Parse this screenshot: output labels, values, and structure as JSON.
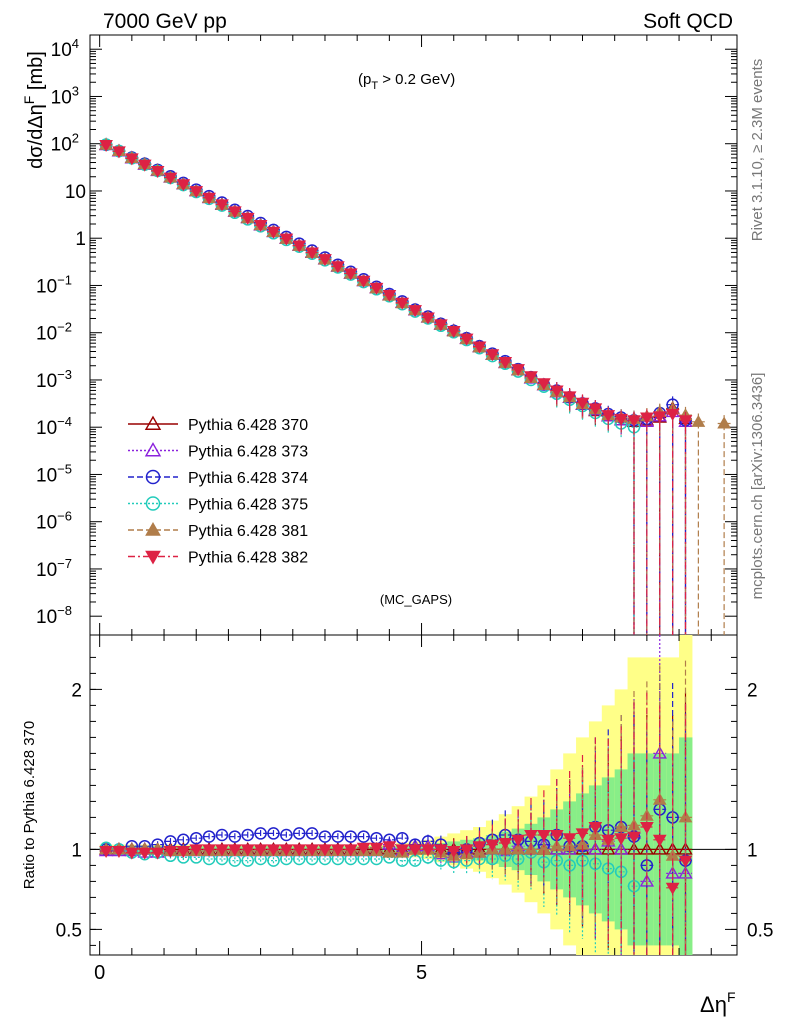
{
  "header": {
    "left": "7000 GeV pp",
    "right": "Soft QCD",
    "cut": "(p_T > 0.2 GeV)",
    "analysis": "(MC_GAPS)"
  },
  "side": {
    "top": "Rivet 3.1.10, ≥ 2.3M events",
    "bottom": "mcplots.cern.ch [arXiv:1306.3436]"
  },
  "chart_data": [
    {
      "type": "scatter",
      "panel": "main",
      "ylabel": "dσ/dΔη^F [mb]",
      "xlabel": "Δη^F",
      "xlim": [
        -0.15,
        9.9
      ],
      "ylim": [
        4e-09,
        20000
      ],
      "yscale": "log",
      "yticks": [
        "10^-8",
        "10^-7",
        "10^-6",
        "10^-5",
        "10^-4",
        "10^-3",
        "10^-2",
        "10^-1",
        "1",
        "10",
        "10^2",
        "10^3",
        "10^4"
      ],
      "legend_position": "lower-left",
      "x": [
        0.1,
        0.3,
        0.5,
        0.7,
        0.9,
        1.1,
        1.3,
        1.5,
        1.7,
        1.9,
        2.1,
        2.3,
        2.5,
        2.7,
        2.9,
        3.1,
        3.3,
        3.5,
        3.7,
        3.9,
        4.1,
        4.3,
        4.5,
        4.7,
        4.9,
        5.1,
        5.3,
        5.5,
        5.7,
        5.9,
        6.1,
        6.3,
        6.5,
        6.7,
        6.9,
        7.1,
        7.3,
        7.5,
        7.7,
        7.9,
        8.1,
        8.3,
        8.5,
        8.7,
        8.9,
        9.1,
        9.3,
        9.5,
        9.7
      ],
      "series": [
        {
          "name": "Pythia 6.428 370",
          "color": "#990000",
          "marker": "open-triangle-up",
          "line": "solid",
          "values": [
            95,
            70,
            50,
            37,
            27,
            19.5,
            14,
            10,
            7.2,
            5.2,
            3.7,
            2.7,
            1.9,
            1.37,
            0.98,
            0.7,
            0.5,
            0.36,
            0.255,
            0.18,
            0.125,
            0.088,
            0.062,
            0.043,
            0.03,
            0.021,
            0.015,
            0.011,
            0.0075,
            0.005,
            0.0034,
            0.0023,
            0.0016,
            0.0011,
            0.00078,
            0.00055,
            0.00042,
            0.0003,
            0.00022,
            0.00017,
            0.00014,
            0.00013,
            0.00014,
            0.00016,
            0.00025,
            0.00015,
            null,
            null,
            null
          ]
        },
        {
          "name": "Pythia 6.428 373",
          "color": "#8b22dd",
          "marker": "open-triangle-up",
          "line": "dotted",
          "values": [
            94,
            69,
            49,
            36,
            26.5,
            19.2,
            13.8,
            9.9,
            7.1,
            5.1,
            3.65,
            2.65,
            1.87,
            1.35,
            0.97,
            0.69,
            0.49,
            0.355,
            0.25,
            0.178,
            0.124,
            0.087,
            0.063,
            0.043,
            0.03,
            0.021,
            0.0148,
            0.0108,
            0.0074,
            0.0049,
            0.0034,
            0.0023,
            0.0016,
            0.00108,
            0.00078,
            0.00055,
            0.00042,
            0.0003,
            0.00023,
            0.00017,
            0.00014,
            0.00015,
            0.00013,
            0.00017,
            0.00021,
            0.00013,
            null,
            null,
            null
          ]
        },
        {
          "name": "Pythia 6.428 374",
          "color": "#2222cc",
          "marker": "open-circle",
          "line": "dashed",
          "values": [
            95,
            70,
            51,
            38,
            28,
            20.5,
            14.8,
            10.7,
            7.8,
            5.7,
            4.0,
            2.95,
            2.1,
            1.5,
            1.07,
            0.77,
            0.55,
            0.39,
            0.275,
            0.195,
            0.135,
            0.094,
            0.066,
            0.046,
            0.031,
            0.022,
            0.0155,
            0.011,
            0.0077,
            0.0052,
            0.0036,
            0.0025,
            0.0017,
            0.00115,
            0.0008,
            0.0006,
            0.00043,
            0.00032,
            0.00025,
            0.00019,
            0.00016,
            0.00014,
            0.00015,
            0.0002,
            0.0003,
            0.00014,
            null,
            null,
            null
          ]
        },
        {
          "name": "Pythia 6.428 375",
          "color": "#22ccbb",
          "marker": "open-circle",
          "line": "dotted",
          "values": [
            96,
            70,
            49,
            36,
            26.5,
            18.8,
            13.3,
            9.5,
            6.8,
            4.9,
            3.45,
            2.5,
            1.78,
            1.27,
            0.92,
            0.66,
            0.47,
            0.34,
            0.24,
            0.17,
            0.118,
            0.083,
            0.059,
            0.04,
            0.028,
            0.02,
            0.014,
            0.0102,
            0.007,
            0.0047,
            0.0032,
            0.0022,
            0.0015,
            0.001,
            0.00072,
            0.00051,
            0.00038,
            0.00028,
            0.0002,
            0.00015,
            0.00012,
            0.0001,
            null,
            null,
            null,
            null,
            null,
            null,
            null
          ]
        },
        {
          "name": "Pythia 6.428 381",
          "color": "#b07d4a",
          "marker": "filled-triangle-up",
          "line": "dashed",
          "values": [
            95,
            70,
            50,
            37,
            27,
            19.3,
            13.9,
            9.9,
            7.1,
            5.1,
            3.65,
            2.65,
            1.88,
            1.35,
            0.97,
            0.69,
            0.49,
            0.355,
            0.25,
            0.178,
            0.124,
            0.087,
            0.061,
            0.042,
            0.03,
            0.021,
            0.0147,
            0.0106,
            0.0073,
            0.0049,
            0.0034,
            0.0023,
            0.0016,
            0.0011,
            0.00078,
            0.00056,
            0.00043,
            0.00031,
            0.00024,
            0.00018,
            0.00016,
            0.00015,
            0.00017,
            0.00021,
            0.00024,
            0.00018,
            0.00013,
            null,
            0.00012
          ]
        },
        {
          "name": "Pythia 6.428 382",
          "color": "#dd2244",
          "marker": "filled-triangle-down",
          "line": "dashdot",
          "values": [
            94,
            69,
            49,
            36,
            26.5,
            19.2,
            13.9,
            9.95,
            7.2,
            5.2,
            3.7,
            2.7,
            1.9,
            1.37,
            0.98,
            0.7,
            0.5,
            0.36,
            0.255,
            0.18,
            0.126,
            0.089,
            0.063,
            0.043,
            0.03,
            0.021,
            0.015,
            0.0109,
            0.0075,
            0.0051,
            0.0035,
            0.0024,
            0.0017,
            0.0012,
            0.00085,
            0.0006,
            0.00045,
            0.00033,
            0.00025,
            0.00018,
            0.00015,
            0.00014,
            0.00016,
            0.00017,
            0.00019,
            0.00014,
            null,
            null,
            null
          ]
        }
      ]
    },
    {
      "type": "scatter",
      "panel": "ratio",
      "ylabel": "Ratio to Pythia 6.428 370",
      "xlabel": "Δη^F",
      "xlim": [
        -0.15,
        9.9
      ],
      "ylim": [
        0.34,
        2.34
      ],
      "xticks": [
        0,
        5
      ],
      "yticks": [
        0.5,
        1,
        2
      ],
      "x": [
        0.1,
        0.3,
        0.5,
        0.7,
        0.9,
        1.1,
        1.3,
        1.5,
        1.7,
        1.9,
        2.1,
        2.3,
        2.5,
        2.7,
        2.9,
        3.1,
        3.3,
        3.5,
        3.7,
        3.9,
        4.1,
        4.3,
        4.5,
        4.7,
        4.9,
        5.1,
        5.3,
        5.5,
        5.7,
        5.9,
        6.1,
        6.3,
        6.5,
        6.7,
        6.9,
        7.1,
        7.3,
        7.5,
        7.7,
        7.9,
        8.1,
        8.3,
        8.5,
        8.7,
        8.9,
        9.1,
        9.3,
        9.5,
        9.7
      ],
      "band_inner": [
        0.02,
        0.02,
        0.02,
        0.02,
        0.02,
        0.02,
        0.02,
        0.02,
        0.02,
        0.02,
        0.02,
        0.02,
        0.02,
        0.02,
        0.02,
        0.02,
        0.02,
        0.02,
        0.02,
        0.02,
        0.02,
        0.02,
        0.02,
        0.02,
        0.025,
        0.03,
        0.04,
        0.05,
        0.06,
        0.07,
        0.09,
        0.11,
        0.13,
        0.16,
        0.2,
        0.25,
        0.3,
        0.35,
        0.4,
        0.45,
        0.5,
        0.6,
        0.6,
        0.6,
        0.6,
        0.7,
        null,
        null,
        null
      ],
      "band_outer": [
        0.03,
        0.03,
        0.03,
        0.03,
        0.03,
        0.03,
        0.03,
        0.03,
        0.03,
        0.03,
        0.03,
        0.03,
        0.03,
        0.03,
        0.03,
        0.03,
        0.03,
        0.03,
        0.03,
        0.03,
        0.03,
        0.03,
        0.03,
        0.04,
        0.05,
        0.06,
        0.08,
        0.1,
        0.12,
        0.14,
        0.18,
        0.22,
        0.27,
        0.33,
        0.4,
        0.5,
        0.6,
        0.7,
        0.8,
        0.9,
        1.0,
        1.2,
        1.2,
        1.2,
        1.2,
        1.4,
        null,
        null,
        null
      ],
      "series": [
        {
          "name": "Pythia 6.428 370",
          "values": [
            1,
            1,
            1,
            1,
            1,
            1,
            1,
            1,
            1,
            1,
            1,
            1,
            1,
            1,
            1,
            1,
            1,
            1,
            1,
            1,
            1,
            1,
            1,
            1,
            1,
            1,
            1,
            1,
            1,
            1,
            1,
            1,
            1,
            1,
            1,
            1,
            1,
            1,
            1,
            1,
            1,
            1,
            1,
            1,
            1,
            1,
            null,
            null,
            null
          ]
        },
        {
          "name": "Pythia 6.428 373",
          "values": [
            0.99,
            0.99,
            0.99,
            0.98,
            0.98,
            0.99,
            0.99,
            0.99,
            0.99,
            0.99,
            0.99,
            0.99,
            0.99,
            0.99,
            0.99,
            0.99,
            0.99,
            0.99,
            0.99,
            0.99,
            0.99,
            0.99,
            1.03,
            0.99,
            1.02,
            1.02,
            0.97,
            0.95,
            0.98,
            0.98,
            1.0,
            0.99,
            1.02,
            1.0,
            1.03,
            1.0,
            1.0,
            1.02,
            1.0,
            1.05,
            1.0,
            1.1,
            0.8,
            1.6,
            0.85,
            0.85,
            null,
            null,
            null
          ]
        },
        {
          "name": "Pythia 6.428 374",
          "values": [
            1.0,
            1.0,
            1.02,
            1.02,
            1.03,
            1.05,
            1.06,
            1.07,
            1.08,
            1.09,
            1.08,
            1.09,
            1.1,
            1.1,
            1.09,
            1.1,
            1.1,
            1.08,
            1.08,
            1.08,
            1.08,
            1.07,
            1.06,
            1.07,
            1.03,
            1.05,
            1.03,
            0.98,
            1.0,
            1.04,
            1.06,
            1.09,
            1.06,
            1.05,
            1.03,
            1.09,
            1.02,
            1.02,
            1.14,
            1.12,
            1.14,
            1.08,
            0.9,
            1.25,
            1.2,
            0.93,
            null,
            null,
            null
          ]
        },
        {
          "name": "Pythia 6.428 375",
          "values": [
            1.01,
            1.0,
            0.98,
            0.97,
            0.98,
            0.96,
            0.95,
            0.95,
            0.94,
            0.94,
            0.93,
            0.93,
            0.94,
            0.93,
            0.94,
            0.94,
            0.94,
            0.94,
            0.94,
            0.94,
            0.94,
            0.94,
            0.95,
            0.93,
            0.93,
            0.95,
            0.93,
            0.92,
            0.93,
            0.94,
            0.94,
            0.96,
            0.94,
            0.98,
            0.92,
            0.93,
            0.9,
            0.93,
            0.91,
            0.88,
            0.86,
            0.77,
            null,
            null,
            null,
            null,
            null,
            null,
            null
          ]
        },
        {
          "name": "Pythia 6.428 381",
          "values": [
            1.0,
            1.0,
            1.0,
            1.0,
            1.0,
            0.99,
            0.99,
            0.99,
            0.99,
            0.99,
            0.99,
            0.99,
            0.99,
            0.99,
            0.99,
            0.99,
            0.99,
            0.99,
            0.99,
            0.99,
            0.99,
            0.99,
            0.98,
            0.98,
            1.0,
            1.0,
            0.98,
            0.96,
            0.97,
            0.98,
            1.0,
            1.0,
            1.0,
            1.0,
            1.0,
            1.02,
            1.02,
            1.03,
            1.09,
            1.06,
            1.14,
            1.15,
            1.21,
            1.31,
            0.96,
            1.2,
            null,
            null,
            null
          ]
        },
        {
          "name": "Pythia 6.428 382",
          "values": [
            0.99,
            0.99,
            0.98,
            0.98,
            0.98,
            0.99,
            0.99,
            1.0,
            1.0,
            1.0,
            1.0,
            1.0,
            1.0,
            1.0,
            1.0,
            1.0,
            1.0,
            1.0,
            1.0,
            1.0,
            1.01,
            1.01,
            1.02,
            1.0,
            1.0,
            1.0,
            1.0,
            0.99,
            1.0,
            1.02,
            1.03,
            1.04,
            1.06,
            1.09,
            1.09,
            1.09,
            1.07,
            1.1,
            1.14,
            1.06,
            1.07,
            1.08,
            1.14,
            1.06,
            0.76,
            0.93,
            null,
            null,
            null
          ]
        }
      ]
    }
  ]
}
